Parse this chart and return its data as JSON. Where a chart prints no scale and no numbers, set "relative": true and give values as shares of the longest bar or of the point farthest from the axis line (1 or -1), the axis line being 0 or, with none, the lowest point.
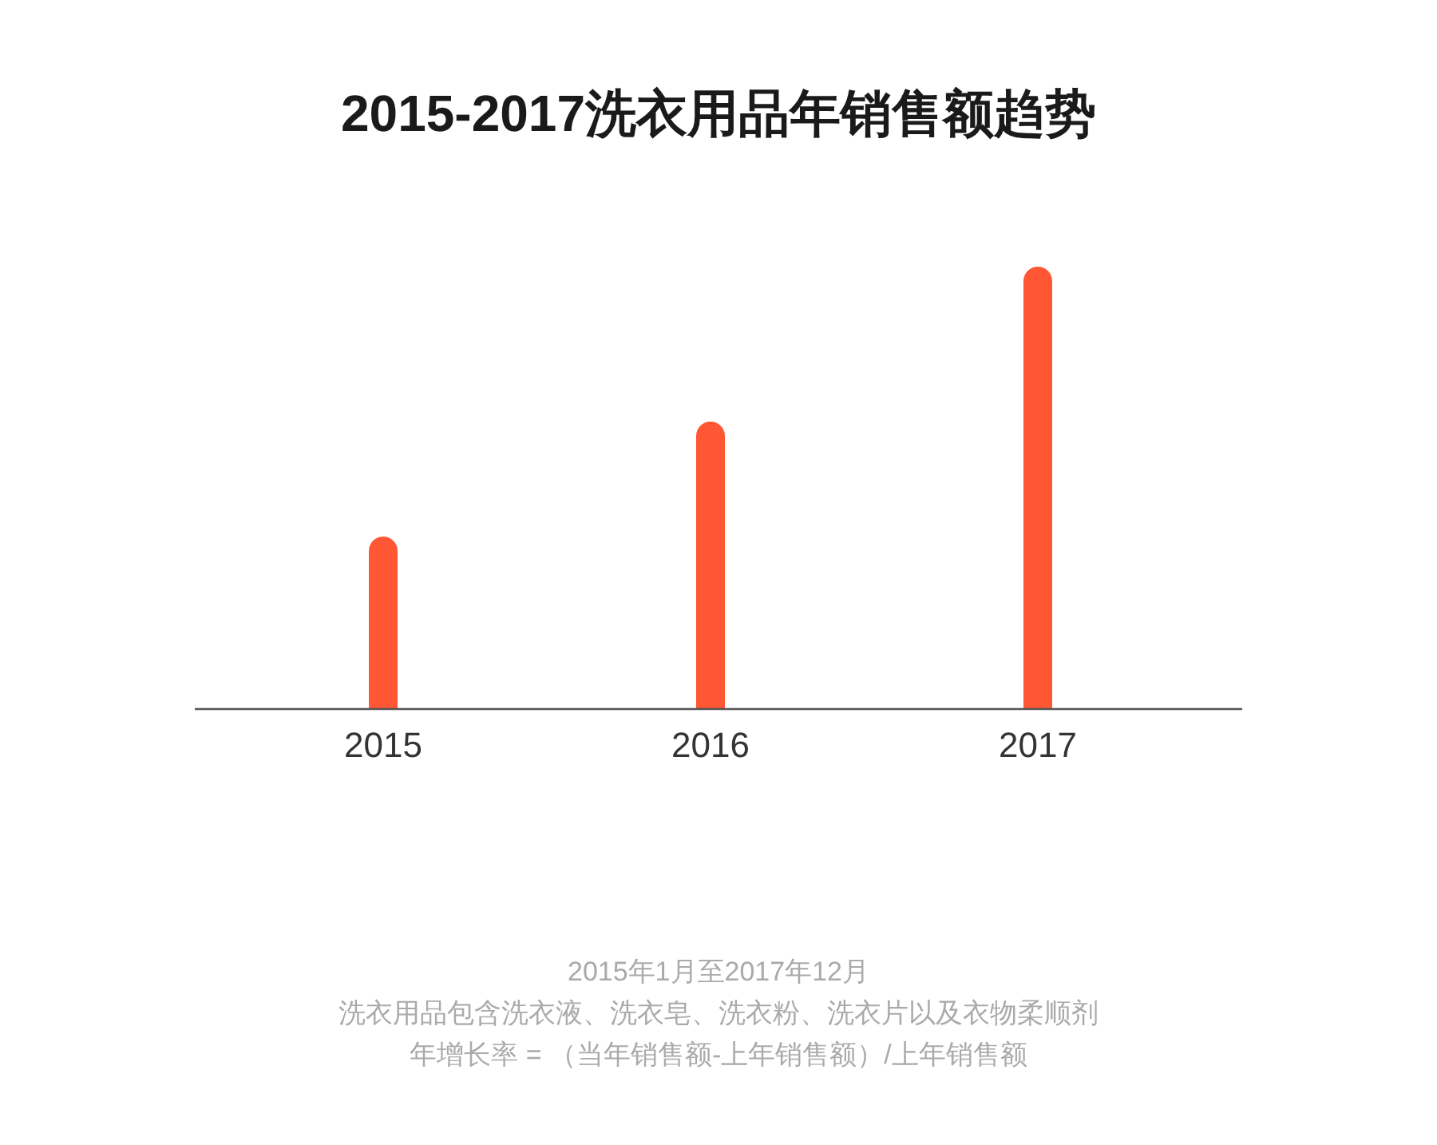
{
  "chart_data": {
    "type": "bar",
    "title": "2015-2017洗衣用品年销售额趋势",
    "categories": [
      "2015",
      "2016",
      "2017"
    ],
    "values": [
      0.39,
      0.65,
      1
    ],
    "color": "#ff5634",
    "relative": true,
    "annotations": [
      "2015年1月至2017年12月",
      "洗衣用品包含洗衣液、洗衣皂、洗衣粉、洗衣片以及衣物柔顺剂",
      "年增长率 =  （当年销售额-上年销售额）/上年销售额"
    ]
  }
}
